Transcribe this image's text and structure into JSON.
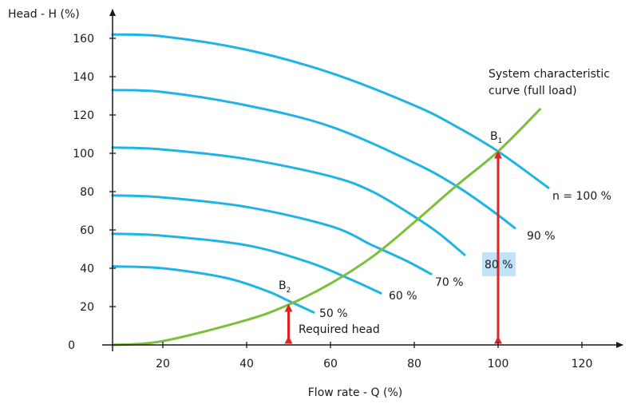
{
  "chart_data": {
    "type": "line",
    "xlabel": "Flow rate - Q (%)",
    "ylabel": "Head - H (%)",
    "xlim": [
      8,
      130
    ],
    "ylim": [
      0,
      170
    ],
    "xticks": [
      20,
      40,
      60,
      80,
      100,
      120
    ],
    "yticks": [
      0,
      20,
      40,
      60,
      80,
      100,
      120,
      140,
      160
    ],
    "grid": false,
    "colors": {
      "pump": "#1fb4e6",
      "system": "#7bbf3a",
      "arrow": "#e02424",
      "highlight": "#bfe4f7"
    },
    "series": [
      {
        "name": "n = 100 %",
        "points": [
          [
            8,
            162
          ],
          [
            20,
            161
          ],
          [
            40,
            154
          ],
          [
            60,
            142
          ],
          [
            80,
            125
          ],
          [
            90,
            114
          ],
          [
            100,
            101
          ],
          [
            112,
            82
          ]
        ]
      },
      {
        "name": "90 %",
        "points": [
          [
            8,
            133
          ],
          [
            20,
            132
          ],
          [
            40,
            125
          ],
          [
            60,
            114
          ],
          [
            80,
            95
          ],
          [
            90,
            83
          ],
          [
            98,
            71
          ],
          [
            104,
            61
          ]
        ]
      },
      {
        "name": "80 %",
        "points": [
          [
            8,
            103
          ],
          [
            20,
            102
          ],
          [
            40,
            97
          ],
          [
            60,
            88
          ],
          [
            70,
            80
          ],
          [
            80,
            67
          ],
          [
            86,
            58
          ],
          [
            92,
            47
          ]
        ]
      },
      {
        "name": "70 %",
        "points": [
          [
            8,
            78
          ],
          [
            20,
            77
          ],
          [
            40,
            72
          ],
          [
            60,
            62
          ],
          [
            70,
            52
          ],
          [
            78,
            44
          ],
          [
            84,
            37
          ]
        ]
      },
      {
        "name": "60 %",
        "points": [
          [
            8,
            58
          ],
          [
            20,
            57
          ],
          [
            40,
            52
          ],
          [
            55,
            43
          ],
          [
            65,
            34
          ],
          [
            72,
            27
          ]
        ]
      },
      {
        "name": "50 %",
        "points": [
          [
            8,
            41
          ],
          [
            20,
            40
          ],
          [
            35,
            35
          ],
          [
            45,
            28
          ],
          [
            50,
            23
          ],
          [
            56,
            17
          ]
        ]
      },
      {
        "name": "System characteristic curve (full load)",
        "points": [
          [
            8,
            0
          ],
          [
            20,
            2
          ],
          [
            40,
            13
          ],
          [
            50,
            21
          ],
          [
            60,
            32
          ],
          [
            70,
            46
          ],
          [
            80,
            64
          ],
          [
            90,
            83
          ],
          [
            100,
            101
          ],
          [
            110,
            123
          ]
        ]
      }
    ],
    "annotations": {
      "b1": "B",
      "b1_sub": "1",
      "b2": "B",
      "b2_sub": "2",
      "system_label_line1": "System characteristic",
      "system_label_line2": "curve (full load)",
      "required_head": "Required head"
    },
    "arrows": [
      {
        "x": 50,
        "y_from": 1,
        "y_to": 21
      },
      {
        "x": 100,
        "y_from": 1,
        "y_to": 101
      }
    ]
  }
}
